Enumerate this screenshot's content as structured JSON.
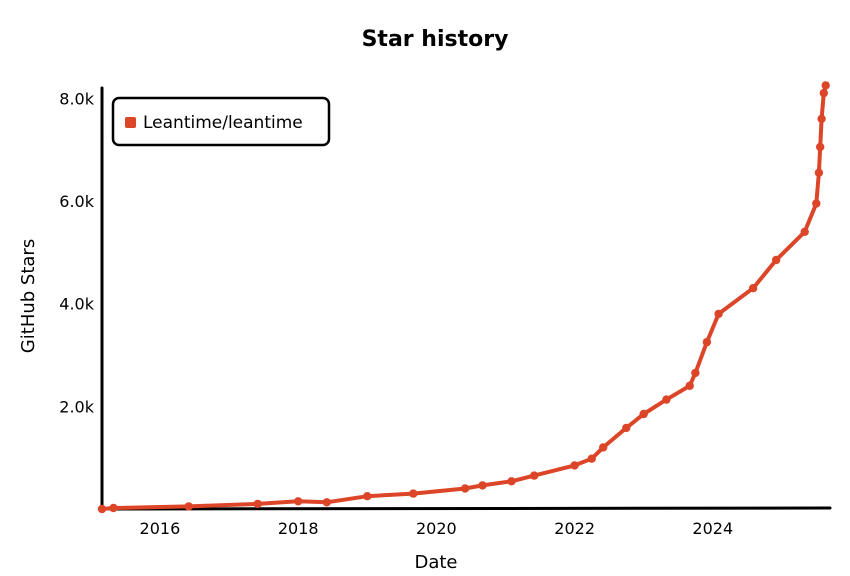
{
  "chart_data": {
    "type": "line",
    "title": "Star history",
    "xlabel": "Date",
    "ylabel": "GitHub Stars",
    "x_ticks": [
      "2016",
      "2018",
      "2020",
      "2022",
      "2024"
    ],
    "y_ticks": [
      "2.0k",
      "4.0k",
      "6.0k",
      "8.0k"
    ],
    "xlim": [
      "2015-03-01",
      "2025-09-01"
    ],
    "ylim": [
      0,
      8200
    ],
    "grid": false,
    "legend_position": "top-left",
    "series": [
      {
        "name": "Leantime/leantime",
        "color": "#dd4528",
        "points": [
          [
            "2015-03-01",
            0
          ],
          [
            "2015-05-01",
            20
          ],
          [
            "2016-06-01",
            50
          ],
          [
            "2017-06-01",
            100
          ],
          [
            "2018-01-01",
            150
          ],
          [
            "2018-06-01",
            130
          ],
          [
            "2019-01-01",
            250
          ],
          [
            "2019-09-01",
            300
          ],
          [
            "2020-06-01",
            400
          ],
          [
            "2020-09-01",
            460
          ],
          [
            "2021-02-01",
            540
          ],
          [
            "2021-06-01",
            650
          ],
          [
            "2022-01-01",
            850
          ],
          [
            "2022-04-01",
            980
          ],
          [
            "2022-06-01",
            1200
          ],
          [
            "2022-10-01",
            1580
          ],
          [
            "2023-01-01",
            1850
          ],
          [
            "2023-05-01",
            2130
          ],
          [
            "2023-09-01",
            2400
          ],
          [
            "2023-10-01",
            2650
          ],
          [
            "2023-12-01",
            3250
          ],
          [
            "2024-02-01",
            3800
          ],
          [
            "2024-08-01",
            4300
          ],
          [
            "2024-12-01",
            4850
          ],
          [
            "2025-05-01",
            5400
          ],
          [
            "2025-07-01",
            5950
          ],
          [
            "2025-07-15",
            6550
          ],
          [
            "2025-07-22",
            7050
          ],
          [
            "2025-07-29",
            7600
          ],
          [
            "2025-08-10",
            8100
          ],
          [
            "2025-08-20",
            8250
          ]
        ]
      }
    ]
  }
}
